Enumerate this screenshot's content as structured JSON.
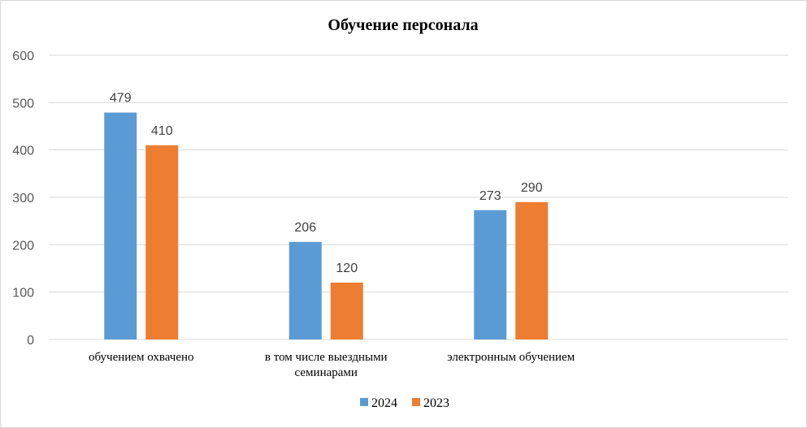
{
  "chart_data": {
    "type": "bar",
    "title": "Обучение персонала",
    "categories": [
      "обучением охвачено",
      "в том числе выездными семинарами",
      "электронным  обучением",
      ""
    ],
    "category_lines": [
      [
        "обучением охвачено"
      ],
      [
        "в том числе выездными",
        "семинарами"
      ],
      [
        "электронным  обучением"
      ],
      []
    ],
    "series": [
      {
        "name": "2024",
        "color": "#5b9bd5",
        "values": [
          479,
          206,
          273,
          null
        ]
      },
      {
        "name": "2023",
        "color": "#ed7d31",
        "values": [
          410,
          120,
          290,
          null
        ]
      }
    ],
    "ylim": [
      0,
      600
    ],
    "yticks": [
      0,
      100,
      200,
      300,
      400,
      500,
      600
    ],
    "xlabel": "",
    "ylabel": "",
    "grid": true,
    "legend": "bottom",
    "data_labels": true
  }
}
